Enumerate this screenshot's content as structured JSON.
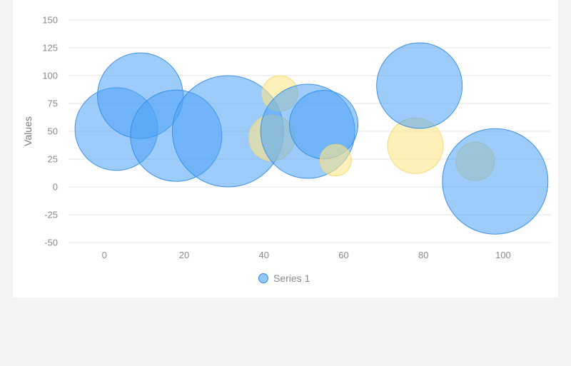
{
  "chart_data": {
    "type": "bubble",
    "ylabel": "Values",
    "xlabel": "",
    "xlim": [
      -9,
      112
    ],
    "ylim": [
      -50,
      150
    ],
    "xticks": [
      0,
      20,
      40,
      60,
      80,
      100
    ],
    "yticks": [
      -50,
      -25,
      0,
      25,
      50,
      75,
      100,
      125,
      150
    ],
    "grid": true,
    "legend_position": "bottom",
    "colors": {
      "series": "#4da3f5",
      "series_stroke": "#2f8ae8",
      "highlight": "#fde68a",
      "highlight_stroke": "#f5d76e",
      "grid": "#e6e6e6"
    },
    "series": [
      {
        "name": "Series 1",
        "points": [
          {
            "x": 3,
            "y": 52,
            "size": 58,
            "highlight": false
          },
          {
            "x": 9,
            "y": 82,
            "size": 60,
            "highlight": false
          },
          {
            "x": 18,
            "y": 46,
            "size": 64,
            "highlight": false
          },
          {
            "x": 31,
            "y": 50,
            "size": 78,
            "highlight": false
          },
          {
            "x": 42,
            "y": 44,
            "size": 32,
            "highlight": true
          },
          {
            "x": 44,
            "y": 84,
            "size": 25,
            "highlight": true
          },
          {
            "x": 51,
            "y": 50,
            "size": 66,
            "highlight": false
          },
          {
            "x": 55,
            "y": 56,
            "size": 48,
            "highlight": false
          },
          {
            "x": 58,
            "y": 24,
            "size": 22,
            "highlight": true
          },
          {
            "x": 78,
            "y": 37,
            "size": 39,
            "highlight": true
          },
          {
            "x": 79,
            "y": 91,
            "size": 60,
            "highlight": false
          },
          {
            "x": 93,
            "y": 23,
            "size": 27,
            "highlight": true
          },
          {
            "x": 98,
            "y": 5,
            "size": 74,
            "highlight": false
          }
        ]
      }
    ]
  }
}
